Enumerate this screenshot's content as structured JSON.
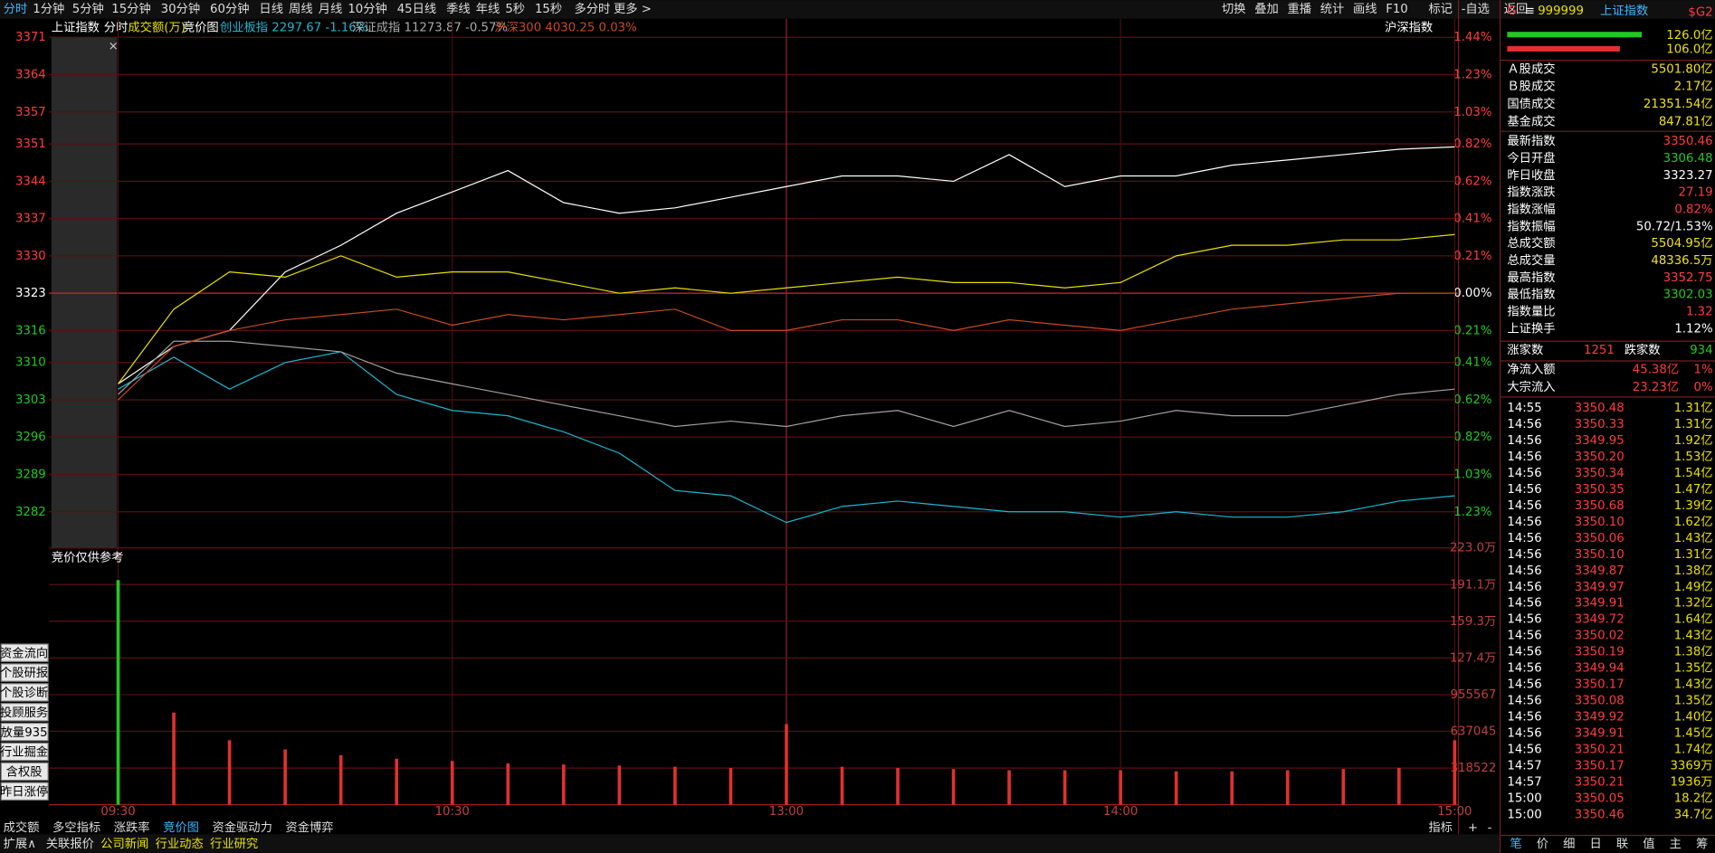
{
  "toolbar": {
    "periods": [
      "分时",
      "1分钟",
      "5分钟",
      "15分钟",
      "30分钟",
      "60分钟",
      "日线",
      "周线",
      "月线",
      "10分钟",
      "45日线",
      "季线",
      "年线",
      "5秒",
      "15秒",
      "多分时",
      "更多 >"
    ],
    "actions": [
      "切换",
      "叠加",
      "重播",
      "统计",
      "画线",
      "F10",
      "标记",
      "-自选",
      "返回"
    ]
  },
  "header": {
    "name": "上证指数",
    "mode": "分时",
    "indicator": "成交额(万)",
    "auction": "竞价图",
    "overlay1": "创业板指 2297.67 -1.16%",
    "overlay2": "深证成指 11273.87 -0.57%",
    "overlay3": "沪深300 4030.25 0.03%",
    "right": "沪深指数"
  },
  "chart_data": {
    "type": "line",
    "categories": [
      "09:30",
      null,
      null,
      null,
      null,
      null,
      "10:30",
      null,
      null,
      null,
      null,
      null,
      "13:00",
      null,
      null,
      null,
      null,
      null,
      "14:00",
      null,
      null,
      null,
      null,
      null,
      "15:00"
    ],
    "ylim": [
      3282,
      3371
    ],
    "yticks": [
      3371,
      3364,
      3357,
      3351,
      3344,
      3337,
      3330,
      3323,
      3316,
      3310,
      3303,
      3296,
      3289,
      3282
    ],
    "pct_labels": [
      "1.44%",
      "1.23%",
      "1.03%",
      "0.82%",
      "0.62%",
      "0.41%",
      "0.21%",
      "0.00%",
      "0.21%",
      "0.41%",
      "0.62%",
      "0.82%",
      "1.03%",
      "1.23%"
    ],
    "colors": {
      "up": "#ff3c3c",
      "flat": "#ffffff",
      "down": "#22c822"
    },
    "series": [
      {
        "name": "上证指数",
        "color": "#ffffff",
        "values": [
          3306,
          3313,
          3316,
          3327,
          3332,
          3338,
          3342,
          3346,
          3340,
          3338,
          3339,
          3341,
          3343,
          3345,
          3345,
          3344,
          3349,
          3343,
          3345,
          3345,
          3347,
          3348,
          3349,
          3350,
          3350.46
        ]
      },
      {
        "name": "均价",
        "color": "#e8e000",
        "values": [
          3306,
          3320,
          3327,
          3326,
          3330,
          3326,
          3327,
          3327,
          3325,
          3323,
          3324,
          3323,
          3324,
          3325,
          3326,
          3325,
          3325,
          3324,
          3325,
          3330,
          3332,
          3332,
          3333,
          3333,
          3334
        ]
      },
      {
        "name": "创业板指",
        "color": "#1ab8d0",
        "values": [
          3305,
          3311,
          3305,
          3310,
          3312,
          3304,
          3301,
          3300,
          3297,
          3293,
          3286,
          3285,
          3280,
          3283,
          3284,
          3283,
          3282,
          3282,
          3281,
          3282,
          3281,
          3281,
          3282,
          3284,
          3285
        ]
      },
      {
        "name": "深证成指",
        "color": "#a0a0a0",
        "values": [
          3304,
          3314,
          3314,
          3313,
          3312,
          3308,
          3306,
          3304,
          3302,
          3300,
          3298,
          3299,
          3298,
          3300,
          3301,
          3298,
          3301,
          3298,
          3299,
          3301,
          3300,
          3300,
          3302,
          3304,
          3305
        ]
      },
      {
        "name": "沪深300",
        "color": "#c84a1e",
        "values": [
          3303,
          3313,
          3316,
          3318,
          3319,
          3320,
          3317,
          3319,
          3318,
          3319,
          3320,
          3316,
          3316,
          3318,
          3318,
          3316,
          3318,
          3317,
          3316,
          3318,
          3320,
          3321,
          3322,
          3323,
          3323
        ]
      }
    ],
    "volume": {
      "title": "竞价仅供参考",
      "color": "#e03030",
      "ylim": [
        0,
        2230000
      ],
      "yticks": [
        {
          "value": 2230000,
          "label": "223.0万"
        },
        {
          "value": 1911000,
          "label": "191.1万"
        },
        {
          "value": 1593000,
          "label": "159.3万"
        },
        {
          "value": 1274000,
          "label": "127.4万"
        },
        955567,
        637045,
        318522
      ],
      "values": [
        1950000,
        800000,
        560000,
        480000,
        430000,
        400000,
        380000,
        360000,
        350000,
        340000,
        330000,
        320000,
        700000,
        330000,
        320000,
        310000,
        300000,
        300000,
        300000,
        290000,
        290000,
        300000,
        310000,
        320000,
        560000
      ]
    }
  },
  "left_buttons": [
    "资金流向",
    "个股研报",
    "个股诊断",
    "投顾服务",
    "放量935",
    "行业掘金",
    "含权股",
    "昨日涨停"
  ],
  "bottom_tabs": [
    "成交额",
    "多空指标",
    "涨跌率",
    "竞价图",
    "资金驱动力",
    "资金博弈"
  ],
  "bottom_right": [
    "指标",
    "+",
    "-"
  ],
  "bottom_row": [
    "扩展∧",
    "关联报价",
    "公司新闻",
    "行业动态",
    "行业研究"
  ],
  "panel": {
    "g": "G",
    "menu": "≡",
    "code": "999999",
    "name": "上证指数",
    "tag": "$G2",
    "bar1": "126.0亿",
    "bar2": "106.0亿",
    "stats": [
      {
        "label": "Ａ股成交",
        "value": "5501.80亿",
        "color": "#f0e020"
      },
      {
        "label": "Ｂ股成交",
        "value": "2.17亿",
        "color": "#f0e020"
      },
      {
        "label": "国债成交",
        "value": "21351.54亿",
        "color": "#f0e020"
      },
      {
        "label": "基金成交",
        "value": "847.81亿",
        "color": "#f0e020"
      },
      {
        "label": "最新指数",
        "value": "3350.46",
        "color": "#ff3c3c"
      },
      {
        "label": "今日开盘",
        "value": "3306.48",
        "color": "#22c822"
      },
      {
        "label": "昨日收盘",
        "value": "3323.27",
        "color": "#ffffff"
      },
      {
        "label": "指数涨跌",
        "value": "27.19",
        "color": "#ff3c3c"
      },
      {
        "label": "指数涨幅",
        "value": "0.82%",
        "color": "#ff3c3c"
      },
      {
        "label": "指数振幅",
        "value": "50.72/1.53%",
        "color": "#ffffff"
      },
      {
        "label": "总成交额",
        "value": "5504.95亿",
        "color": "#f0e020"
      },
      {
        "label": "总成交量",
        "value": "48336.5万",
        "color": "#f0e020"
      },
      {
        "label": "最高指数",
        "value": "3352.75",
        "color": "#ff3c3c"
      },
      {
        "label": "最低指数",
        "value": "3302.03",
        "color": "#22c822"
      },
      {
        "label": "指数量比",
        "value": "1.32",
        "color": "#ff3c3c"
      },
      {
        "label": "上证换手",
        "value": "1.12%",
        "color": "#ffffff"
      }
    ],
    "breadth": [
      "涨家数",
      "1251",
      "跌家数",
      "934"
    ],
    "flows": [
      [
        "净流入额",
        "45.38亿",
        "1%"
      ],
      [
        "大宗流入",
        "23.23亿",
        "0%"
      ]
    ],
    "ticks": [
      [
        "14:55",
        "3350.48",
        "1.31亿"
      ],
      [
        "14:56",
        "3350.33",
        "1.31亿"
      ],
      [
        "14:56",
        "3349.95",
        "1.92亿"
      ],
      [
        "14:56",
        "3350.20",
        "1.53亿"
      ],
      [
        "14:56",
        "3350.34",
        "1.54亿"
      ],
      [
        "14:56",
        "3350.35",
        "1.47亿"
      ],
      [
        "14:56",
        "3350.68",
        "1.39亿"
      ],
      [
        "14:56",
        "3350.10",
        "1.62亿"
      ],
      [
        "14:56",
        "3350.06",
        "1.43亿"
      ],
      [
        "14:56",
        "3350.10",
        "1.31亿"
      ],
      [
        "14:56",
        "3349.87",
        "1.38亿"
      ],
      [
        "14:56",
        "3349.97",
        "1.49亿"
      ],
      [
        "14:56",
        "3349.91",
        "1.32亿"
      ],
      [
        "14:56",
        "3349.72",
        "1.64亿"
      ],
      [
        "14:56",
        "3350.02",
        "1.43亿"
      ],
      [
        "14:56",
        "3350.19",
        "1.38亿"
      ],
      [
        "14:56",
        "3349.94",
        "1.35亿"
      ],
      [
        "14:56",
        "3350.17",
        "1.43亿"
      ],
      [
        "14:56",
        "3350.08",
        "1.35亿"
      ],
      [
        "14:56",
        "3349.92",
        "1.40亿"
      ],
      [
        "14:56",
        "3349.91",
        "1.45亿"
      ],
      [
        "14:56",
        "3350.21",
        "1.74亿"
      ],
      [
        "14:57",
        "3350.17",
        "3369万"
      ],
      [
        "14:57",
        "3350.21",
        "1936万"
      ],
      [
        "15:00",
        "3350.05",
        "18.2亿"
      ],
      [
        "15:00",
        "3350.46",
        "34.7亿"
      ]
    ],
    "tabs": [
      "笔",
      "价",
      "细",
      "日",
      "联",
      "值",
      "主",
      "筹"
    ]
  }
}
